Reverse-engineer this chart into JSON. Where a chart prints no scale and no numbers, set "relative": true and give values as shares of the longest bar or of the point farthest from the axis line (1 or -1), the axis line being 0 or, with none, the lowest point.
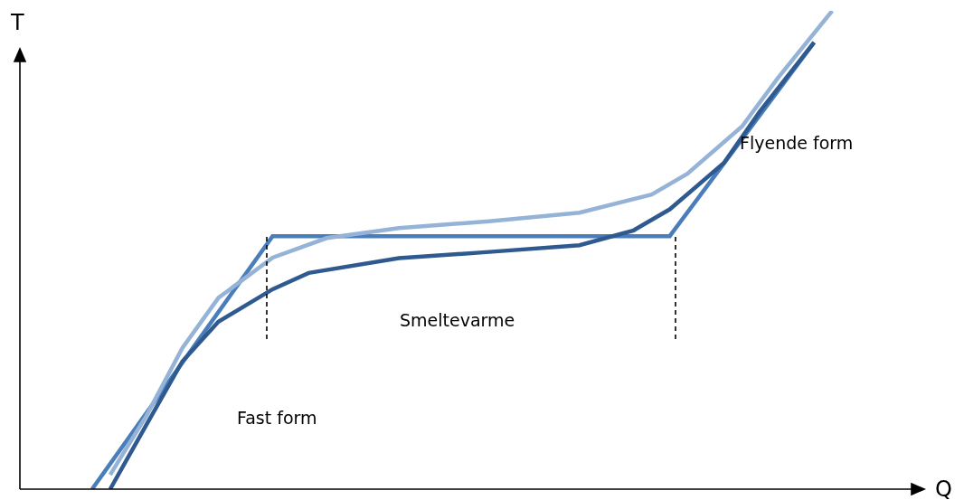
{
  "chart_data": {
    "type": "line",
    "relative": true,
    "xlabel": "Q",
    "ylabel": "T",
    "grid": false,
    "marker": "none",
    "line_style": "solid",
    "categories": [
      null,
      null,
      null,
      null,
      null,
      null,
      null,
      null,
      null,
      null,
      null,
      null,
      null,
      null,
      null,
      null,
      null,
      null,
      null,
      null,
      null,
      null,
      null,
      null,
      null,
      null,
      null,
      null,
      null,
      null,
      null,
      null,
      null,
      null,
      null,
      null,
      null,
      null,
      null,
      null,
      null,
      null,
      null,
      null,
      null,
      null,
      null,
      null,
      null,
      null,
      null
    ],
    "annotations": [
      "Fast form",
      "Smeltevarme",
      "Flyende form"
    ],
    "series": [
      {
        "color": "#4a7ebb",
        "values": [
          null,
          null,
          null,
          null,
          0,
          null,
          null,
          null,
          null,
          null,
          null,
          null,
          null,
          null,
          0.529,
          null,
          null,
          null,
          null,
          null,
          null,
          null,
          null,
          null,
          null,
          null,
          null,
          null,
          null,
          null,
          null,
          null,
          null,
          null,
          null,
          null,
          0.529,
          null,
          null,
          null,
          null,
          null,
          null,
          null,
          0.934,
          null,
          null,
          null,
          null,
          null,
          null
        ]
      },
      {
        "color": "#2f5a8f",
        "values": [
          null,
          null,
          null,
          null,
          null,
          0,
          null,
          0.134,
          null,
          0.267,
          null,
          0.35,
          null,
          null,
          0.418,
          null,
          0.452,
          null,
          null,
          null,
          null,
          0.483,
          null,
          null,
          null,
          null,
          0.496,
          null,
          null,
          null,
          null,
          0.51,
          null,
          null,
          0.541,
          null,
          0.585,
          null,
          null,
          0.682,
          null,
          0.79,
          null,
          null,
          0.934,
          null,
          null,
          null,
          null,
          null,
          null
        ]
      },
      {
        "color": "#95b3d7",
        "values": [
          null,
          null,
          null,
          null,
          null,
          0.03,
          null,
          0.153,
          null,
          0.295,
          null,
          0.4,
          null,
          null,
          0.484,
          null,
          null,
          0.525,
          null,
          null,
          null,
          0.546,
          null,
          null,
          null,
          null,
          0.56,
          null,
          null,
          null,
          null,
          0.578,
          null,
          null,
          null,
          0.616,
          null,
          0.66,
          null,
          null,
          0.758,
          null,
          0.86,
          null,
          null,
          1.0,
          null,
          null,
          null,
          null,
          null
        ]
      }
    ]
  }
}
